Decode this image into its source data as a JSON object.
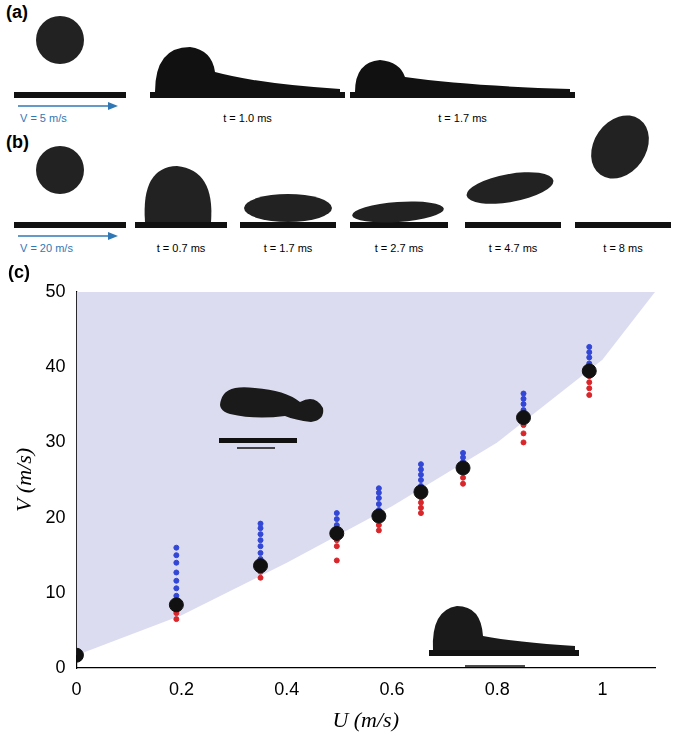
{
  "panels": [
    {
      "label": "(a)",
      "speed_label": "V = 5 m/s",
      "frame_times": [
        "t = 1.0 ms",
        "t = 1.7 ms"
      ]
    },
    {
      "label": "(b)",
      "speed_label": "V = 20 m/s",
      "frame_times": [
        "t = 0.7 ms",
        "t = 1.7 ms",
        "t = 2.7 ms",
        "t = 4.7 ms",
        "t = 8 ms"
      ]
    }
  ],
  "chart_data": {
    "type": "scatter",
    "panel_label": "(c)",
    "x_label": "U (m/s)",
    "y_label": "V (m/s)",
    "xlim": [
      0,
      1.1
    ],
    "xticks": [
      0,
      0.2,
      0.4,
      0.6,
      0.8,
      1
    ],
    "ylim": [
      0,
      50
    ],
    "yticks": [
      0,
      10,
      20,
      30,
      40,
      50
    ],
    "grid": false,
    "shaded_region": {
      "x": [
        0,
        0.2,
        0.4,
        0.6,
        0.8,
        1.0,
        1.1
      ],
      "values": [
        1.7,
        7,
        14,
        21.5,
        30,
        41,
        50
      ],
      "color": "#dcdcf0"
    },
    "series": [
      {
        "color": "#111111",
        "marker": "large_circle",
        "x": [
          0,
          0.19,
          0.35,
          0.495,
          0.575,
          0.655,
          0.735,
          0.85,
          0.975
        ],
        "values": [
          1.7,
          8.4,
          13.6,
          17.9,
          20.2,
          23.4,
          26.6,
          33.3,
          39.5
        ]
      },
      {
        "color": "#3347d6",
        "marker": "dot",
        "x": [
          0.19,
          0.19,
          0.19,
          0.19,
          0.19,
          0.19,
          0.19,
          0.35,
          0.35,
          0.35,
          0.35,
          0.35,
          0.35,
          0.35,
          0.495,
          0.495,
          0.495,
          0.575,
          0.575,
          0.575,
          0.575,
          0.575,
          0.655,
          0.655,
          0.655,
          0.655,
          0.655,
          0.735,
          0.735,
          0.735,
          0.85,
          0.85,
          0.85,
          0.85,
          0.975,
          0.975,
          0.975,
          0.975
        ],
        "values": [
          9.6,
          10.6,
          11.6,
          12.7,
          14.0,
          15.0,
          16.0,
          14.5,
          15.3,
          16.2,
          17.0,
          17.8,
          18.6,
          19.2,
          19.0,
          19.8,
          20.6,
          21.0,
          21.8,
          22.6,
          23.3,
          23.9,
          24.2,
          25.0,
          25.7,
          26.4,
          27.1,
          27.4,
          28.0,
          28.6,
          34.3,
          35.1,
          35.8,
          36.5,
          40.5,
          41.3,
          42.0,
          42.7
        ]
      },
      {
        "color": "#d8262b",
        "marker": "dot",
        "x": [
          0.19,
          0.19,
          0.35,
          0.35,
          0.495,
          0.495,
          0.495,
          0.575,
          0.575,
          0.655,
          0.655,
          0.655,
          0.655,
          0.735,
          0.735,
          0.85,
          0.85,
          0.85,
          0.975,
          0.975,
          0.975,
          0.975
        ],
        "values": [
          6.5,
          7.3,
          12.0,
          12.8,
          14.3,
          16.2,
          17.0,
          18.3,
          19.0,
          20.6,
          21.3,
          22.0,
          22.7,
          24.5,
          25.3,
          30.0,
          31.2,
          32.3,
          36.3,
          37.2,
          38.0,
          38.8
        ]
      }
    ]
  }
}
